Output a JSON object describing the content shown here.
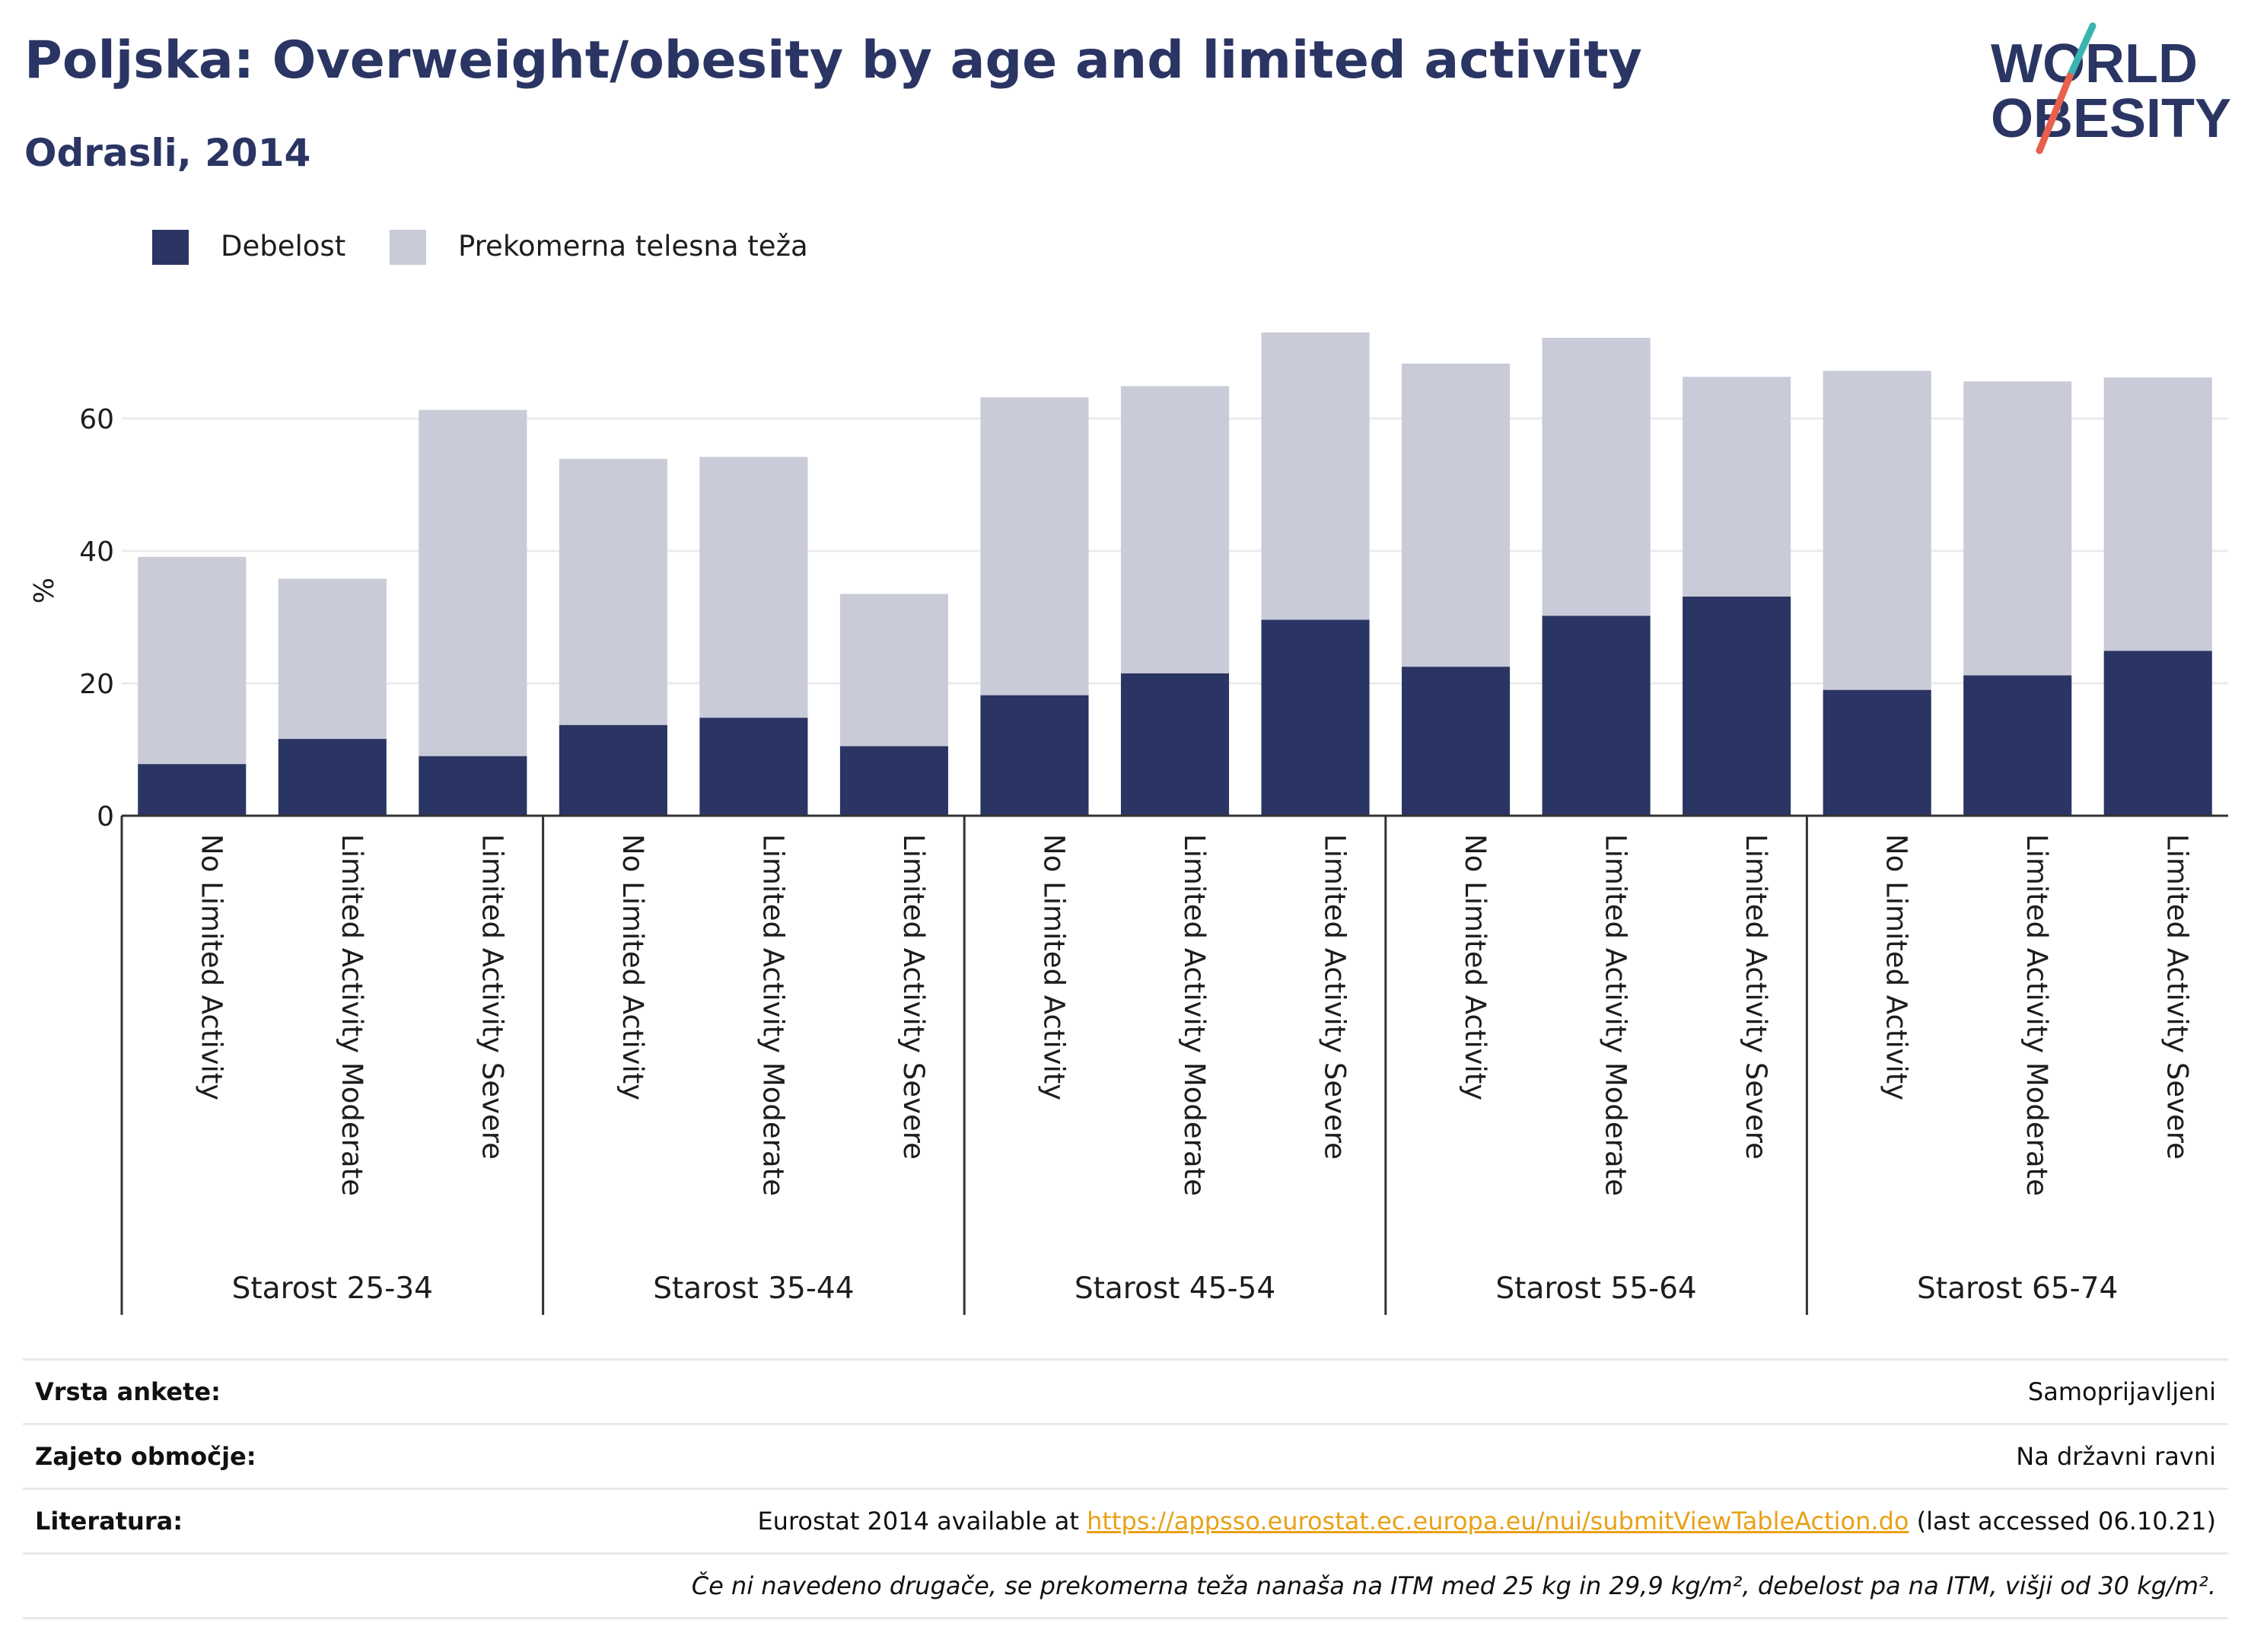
{
  "title": "Poljska: Overweight/obesity by age and limited activity",
  "subtitle": "Odrasli, 2014",
  "logo": {
    "line1": "WORLD",
    "line2": "OBESITY",
    "colors": {
      "text": "#2a3563",
      "slash_top": "#3bb5b0",
      "slash_bottom": "#e8604c"
    }
  },
  "colors": {
    "obesity": "#2a3563",
    "overweight": "#c9cbd8",
    "grid": "#ebebef",
    "axis": "#333333"
  },
  "chart_data": {
    "type": "bar",
    "stacked": true,
    "ylabel": "%",
    "ylim": [
      0,
      76
    ],
    "yticks": [
      0,
      20,
      40,
      60
    ],
    "legend": [
      "Debelost",
      "Prekomerna telesna teža"
    ],
    "legend_position": "top-left",
    "grid": true,
    "groups": [
      {
        "label": "Starost 25-34",
        "bars": [
          {
            "category": "No Limited Activity",
            "obesity": 7.8,
            "total": 39.1
          },
          {
            "category": "Limited Activity Moderate",
            "obesity": 11.6,
            "total": 35.8
          },
          {
            "category": "Limited Activity Severe",
            "obesity": 9.0,
            "total": 61.3
          }
        ]
      },
      {
        "label": "Starost 35-44",
        "bars": [
          {
            "category": "No Limited Activity",
            "obesity": 13.7,
            "total": 53.9
          },
          {
            "category": "Limited Activity Moderate",
            "obesity": 14.8,
            "total": 54.2
          },
          {
            "category": "Limited Activity Severe",
            "obesity": 10.5,
            "total": 33.5
          }
        ]
      },
      {
        "label": "Starost 45-54",
        "bars": [
          {
            "category": "No Limited Activity",
            "obesity": 18.2,
            "total": 63.2
          },
          {
            "category": "Limited Activity Moderate",
            "obesity": 21.5,
            "total": 64.9
          },
          {
            "category": "Limited Activity Severe",
            "obesity": 29.6,
            "total": 73.0
          }
        ]
      },
      {
        "label": "Starost 55-64",
        "bars": [
          {
            "category": "No Limited Activity",
            "obesity": 22.5,
            "total": 68.3
          },
          {
            "category": "Limited Activity Moderate",
            "obesity": 30.2,
            "total": 72.2
          },
          {
            "category": "Limited Activity Severe",
            "obesity": 33.1,
            "total": 66.3
          }
        ]
      },
      {
        "label": "Starost 65-74",
        "bars": [
          {
            "category": "No Limited Activity",
            "obesity": 19.0,
            "total": 67.2
          },
          {
            "category": "Limited Activity Moderate",
            "obesity": 21.2,
            "total": 65.6
          },
          {
            "category": "Limited Activity Severe",
            "obesity": 24.9,
            "total": 66.2
          }
        ]
      }
    ]
  },
  "info": {
    "rows": [
      {
        "label": "Vrsta ankete:",
        "value": "Samoprijavljeni"
      },
      {
        "label": "Zajeto območje:",
        "value": "Na državni ravni"
      },
      {
        "label": "Literatura:",
        "value_prefix": "Eurostat 2014 available at ",
        "link": "https://appsso.eurostat.ec.europa.eu/nui/submitViewTableAction.do",
        "value_suffix": " (last accessed 06.10.21)"
      }
    ],
    "note": "Če ni navedeno drugače, se prekomerna teža nanaša na ITM med 25 kg in 29,9 kg/m², debelost pa na ITM, višji od 30 kg/m²."
  }
}
